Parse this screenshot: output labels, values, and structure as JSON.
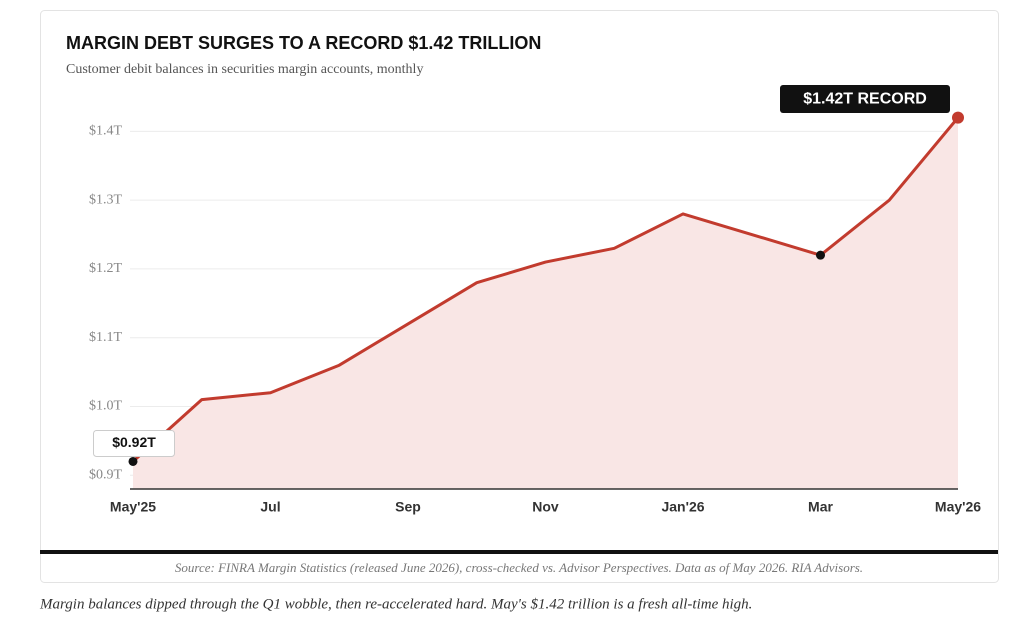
{
  "chart_data": {
    "type": "line",
    "title": "MARGIN DEBT SURGES TO A RECORD $1.42 TRILLION",
    "subtitle": "Customer debit balances in securities margin accounts, monthly",
    "categories": [
      "May'25",
      null,
      "Jul",
      null,
      "Sep",
      null,
      "Nov",
      null,
      "Jan'26",
      null,
      "Mar",
      null,
      "May'26"
    ],
    "values": [
      0.92,
      1.01,
      1.02,
      1.06,
      1.12,
      1.18,
      1.21,
      1.23,
      1.28,
      1.25,
      1.22,
      1.3,
      1.42
    ],
    "color": "#c23b2e",
    "ylim": [
      0.88,
      1.45
    ],
    "yticks": [
      {
        "value": 0.9,
        "label": "$0.9T"
      },
      {
        "value": 1.0,
        "label": "$1.0T"
      },
      {
        "value": 1.1,
        "label": "$1.1T"
      },
      {
        "value": 1.2,
        "label": "$1.2T"
      },
      {
        "value": 1.3,
        "label": "$1.3T"
      },
      {
        "value": 1.4,
        "label": "$1.4T"
      }
    ],
    "grid": true,
    "annotations": [
      {
        "text": "$1.42T RECORD"
      },
      {
        "text": "$0.92T"
      }
    ],
    "source": "Source: FINRA Margin Statistics (released June 2026), cross-checked vs. Advisor Perspectives. Data as of May 2026. RIA Advisors.",
    "caption": "Margin balances dipped through the Q1 wobble, then re-accelerated hard. May's $1.42 trillion is a fresh all-time high."
  }
}
